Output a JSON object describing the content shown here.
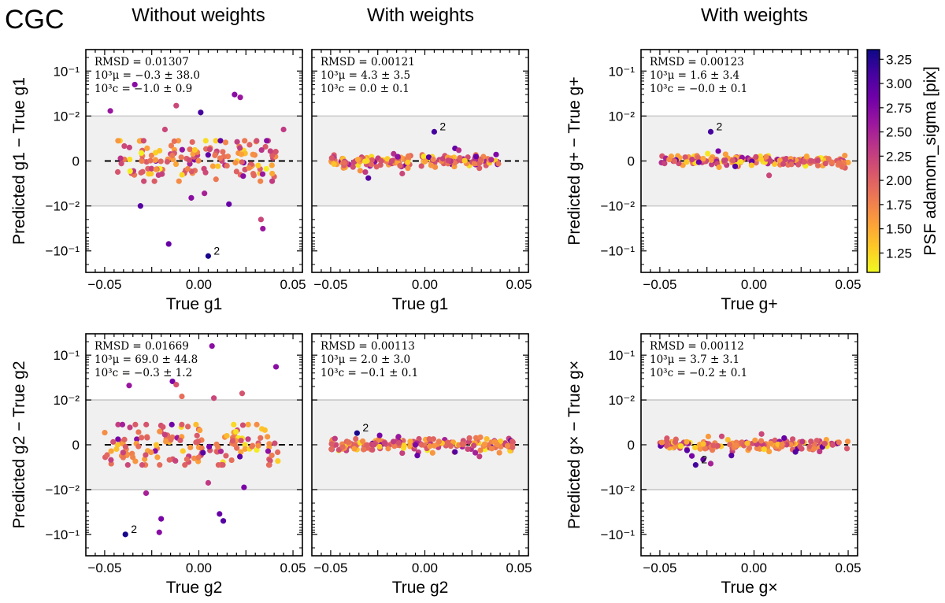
{
  "figure": {
    "title": "CGC",
    "column_titles": [
      "Without weights",
      "With weights",
      "With weights"
    ]
  },
  "colorbar": {
    "label": "PSF adamom_sigma [pix]",
    "ticks": [
      1.25,
      1.5,
      1.75,
      2.0,
      2.25,
      2.5,
      2.75,
      3.0,
      3.25
    ],
    "tick_labels": [
      "1.25",
      "1.50",
      "1.75",
      "2.00",
      "2.25",
      "2.50",
      "2.75",
      "3.00",
      "3.25"
    ],
    "range": [
      1.05,
      3.35
    ],
    "colormap": "plasma_r",
    "colors": [
      "#f0f921",
      "#fdca26",
      "#fb9f3a",
      "#ed7953",
      "#d8576b",
      "#bd3786",
      "#9c179e",
      "#7201a8",
      "#46039f",
      "#0d0887"
    ]
  },
  "chart_data": [
    {
      "id": "p11",
      "type": "scatter",
      "xlabel": "True g1",
      "ylabel": "Predicted g1 − True g1",
      "xlim": [
        -0.06,
        0.055
      ],
      "ylim": [
        -0.3,
        0.3
      ],
      "yscale": "symlog",
      "linthresh": 0.01,
      "xticks": [
        -0.05,
        0.0,
        0.05
      ],
      "xtick_labels": [
        "−0.05",
        "0.00",
        "0.05"
      ],
      "ytick_labels": [
        "10⁻¹",
        "10⁻²",
        "0",
        "−10⁻²",
        "−10⁻¹"
      ],
      "band": [
        -0.01,
        0.01
      ],
      "annotation": [
        "RMSD = 0.01307",
        "10³μ = −0.3 ± 38.0",
        "10³c = −1.0 ± 0.9"
      ],
      "label2": {
        "x": 0.005,
        "y": -0.13,
        "text": "2"
      },
      "outliers": [
        {
          "x": -0.047,
          "y": 0.013,
          "c": 2.6
        },
        {
          "x": -0.034,
          "y": 0.05,
          "c": 2.7
        },
        {
          "x": -0.018,
          "y": 0.007,
          "c": 2.2
        },
        {
          "x": -0.012,
          "y": 0.017,
          "c": 2.2
        },
        {
          "x": 0.001,
          "y": 0.012,
          "c": 3.1
        },
        {
          "x": 0.019,
          "y": 0.03,
          "c": 2.7
        },
        {
          "x": 0.022,
          "y": 0.026,
          "c": 2.6
        },
        {
          "x": 0.045,
          "y": 0.007,
          "c": 2.3
        },
        {
          "x": -0.031,
          "y": -0.01,
          "c": 3.0
        },
        {
          "x": -0.004,
          "y": -0.0082,
          "c": 2.7
        },
        {
          "x": 0.003,
          "y": -0.0072,
          "c": 2.5
        },
        {
          "x": 0.016,
          "y": -0.0096,
          "c": 2.9
        },
        {
          "x": -0.016,
          "y": -0.07,
          "c": 2.9
        },
        {
          "x": 0.005,
          "y": -0.13,
          "c": 3.3
        },
        {
          "x": 0.033,
          "y": -0.02,
          "c": 2.2
        },
        {
          "x": 0.034,
          "y": -0.032,
          "c": 2.6
        }
      ],
      "bulk": {
        "n": 150,
        "xmin": -0.048,
        "xmax": 0.041,
        "spread": 0.003,
        "seed": 11
      }
    },
    {
      "id": "p12",
      "type": "scatter",
      "xlabel": "True g1",
      "ylabel": "",
      "xlim": [
        -0.06,
        0.055
      ],
      "ylim": [
        -0.3,
        0.3
      ],
      "yscale": "symlog",
      "linthresh": 0.01,
      "xticks": [
        -0.05,
        0.0,
        0.05
      ],
      "xtick_labels": [
        "−0.05",
        "0.00",
        "0.05"
      ],
      "band": [
        -0.01,
        0.01
      ],
      "annotation": [
        "RMSD = 0.00121",
        "10³μ = 4.3 ± 3.5",
        "10³c = 0.0 ± 0.1"
      ],
      "label2": {
        "x": 0.005,
        "y": 0.0065,
        "text": "2"
      },
      "outliers": [
        {
          "x": 0.005,
          "y": 0.0065,
          "c": 3.1
        },
        {
          "x": 0.016,
          "y": 0.0028,
          "c": 2.9
        },
        {
          "x": 0.018,
          "y": 0.0024,
          "c": 2.4
        },
        {
          "x": -0.03,
          "y": -0.0038,
          "c": 3.0
        },
        {
          "x": -0.012,
          "y": -0.0028,
          "c": 2.2
        }
      ],
      "bulk": {
        "n": 170,
        "xmin": -0.05,
        "xmax": 0.04,
        "spread": 0.0007,
        "seed": 12
      }
    },
    {
      "id": "p13",
      "type": "scatter",
      "xlabel": "True g+",
      "ylabel": "Predicted g+ − True g+",
      "xlim": [
        -0.06,
        0.055
      ],
      "ylim": [
        -0.3,
        0.3
      ],
      "yscale": "symlog",
      "linthresh": 0.01,
      "xticks": [
        -0.05,
        0.0,
        0.05
      ],
      "xtick_labels": [
        "−0.05",
        "0.00",
        "0.05"
      ],
      "ytick_labels": [
        "10⁻¹",
        "10⁻²",
        "0",
        "−10⁻²",
        "−10⁻¹"
      ],
      "band": [
        -0.01,
        0.01
      ],
      "annotation": [
        "RMSD = 0.00123",
        "10³μ = 1.6 ± 3.4",
        "10³c = −0.0 ± 0.1"
      ],
      "label2": {
        "x": -0.023,
        "y": 0.0065,
        "text": "2"
      },
      "outliers": [
        {
          "x": -0.023,
          "y": 0.0065,
          "c": 3.1
        },
        {
          "x": -0.019,
          "y": 0.0022,
          "c": 2.8
        },
        {
          "x": -0.01,
          "y": -0.0012,
          "c": 3.0
        },
        {
          "x": 0.008,
          "y": -0.0032,
          "c": 2.2
        }
      ],
      "bulk": {
        "n": 170,
        "xmin": -0.05,
        "xmax": 0.05,
        "spread": 0.0006,
        "seed": 13
      }
    },
    {
      "id": "p21",
      "type": "scatter",
      "xlabel": "True g2",
      "ylabel": "Predicted g2 − True g2",
      "xlim": [
        -0.06,
        0.055
      ],
      "ylim": [
        -0.3,
        0.3
      ],
      "yscale": "symlog",
      "linthresh": 0.01,
      "xticks": [
        -0.05,
        0.0,
        0.05
      ],
      "xtick_labels": [
        "−0.05",
        "0.00",
        "0.05"
      ],
      "ytick_labels": [
        "10⁻¹",
        "10⁻²",
        "0",
        "−10⁻²",
        "−10⁻¹"
      ],
      "band": [
        -0.01,
        0.01
      ],
      "annotation": [
        "RMSD = 0.01669",
        "10³μ = 69.0 ± 44.8",
        "10³c = −0.3 ± 1.2"
      ],
      "label2": {
        "x": -0.039,
        "y": -0.1,
        "text": "2"
      },
      "outliers": [
        {
          "x": 0.007,
          "y": 0.16,
          "c": 2.7
        },
        {
          "x": 0.041,
          "y": 0.055,
          "c": 2.7
        },
        {
          "x": -0.037,
          "y": 0.021,
          "c": 2.6
        },
        {
          "x": -0.014,
          "y": 0.026,
          "c": 2.8
        },
        {
          "x": -0.012,
          "y": 0.022,
          "c": 2.1
        },
        {
          "x": -0.009,
          "y": 0.012,
          "c": 1.9
        },
        {
          "x": 0.023,
          "y": 0.014,
          "c": 2.1
        },
        {
          "x": 0.008,
          "y": 0.011,
          "c": 2.2
        },
        {
          "x": -0.028,
          "y": -0.012,
          "c": 2.5
        },
        {
          "x": 0.005,
          "y": -0.0085,
          "c": 2.3
        },
        {
          "x": 0.024,
          "y": -0.0095,
          "c": 2.8
        },
        {
          "x": 0.011,
          "y": -0.035,
          "c": 2.9
        },
        {
          "x": 0.013,
          "y": -0.05,
          "c": 3.0
        },
        {
          "x": -0.02,
          "y": -0.045,
          "c": 2.8
        },
        {
          "x": -0.021,
          "y": -0.09,
          "c": 2.7
        },
        {
          "x": -0.039,
          "y": -0.1,
          "c": 3.3
        }
      ],
      "bulk": {
        "n": 150,
        "xmin": -0.05,
        "xmax": 0.042,
        "spread": 0.003,
        "seed": 21
      }
    },
    {
      "id": "p22",
      "type": "scatter",
      "xlabel": "True g2",
      "ylabel": "",
      "xlim": [
        -0.06,
        0.055
      ],
      "ylim": [
        -0.3,
        0.3
      ],
      "yscale": "symlog",
      "linthresh": 0.01,
      "xticks": [
        -0.05,
        0.0,
        0.05
      ],
      "xtick_labels": [
        "−0.05",
        "0.00",
        "0.05"
      ],
      "band": [
        -0.01,
        0.01
      ],
      "annotation": [
        "RMSD = 0.00113",
        "10³μ = 2.0 ± 3.0",
        "10³c = −0.1 ± 0.1"
      ],
      "label2": {
        "x": -0.036,
        "y": 0.0026,
        "text": "2"
      },
      "outliers": [
        {
          "x": -0.036,
          "y": 0.0026,
          "c": 3.3
        },
        {
          "x": -0.024,
          "y": 0.0021,
          "c": 2.8
        },
        {
          "x": -0.014,
          "y": 0.0018,
          "c": 2.6
        },
        {
          "x": -0.004,
          "y": -0.0024,
          "c": 2.9
        },
        {
          "x": 0.016,
          "y": -0.0016,
          "c": 3.0
        },
        {
          "x": 0.029,
          "y": -0.0026,
          "c": 2.3
        }
      ],
      "bulk": {
        "n": 170,
        "xmin": -0.05,
        "xmax": 0.047,
        "spread": 0.0007,
        "seed": 22
      }
    },
    {
      "id": "p23",
      "type": "scatter",
      "xlabel": "True g×",
      "ylabel": "Predicted g× − True g×",
      "xlim": [
        -0.06,
        0.055
      ],
      "ylim": [
        -0.3,
        0.3
      ],
      "yscale": "symlog",
      "linthresh": 0.01,
      "xticks": [
        -0.05,
        0.0,
        0.05
      ],
      "xtick_labels": [
        "−0.05",
        "0.00",
        "0.05"
      ],
      "ytick_labels": [
        "10⁻¹",
        "10⁻²",
        "0",
        "−10⁻²",
        "−10⁻¹"
      ],
      "band": [
        -0.01,
        0.01
      ],
      "annotation": [
        "RMSD = 0.00112",
        "10³μ = 3.7 ± 3.1",
        "10³c = −0.2 ± 0.1"
      ],
      "label2": {
        "x": -0.031,
        "y": -0.0045,
        "text": "2"
      },
      "outliers": [
        {
          "x": -0.031,
          "y": -0.0045,
          "c": 3.1
        },
        {
          "x": -0.033,
          "y": -0.0025,
          "c": 2.8
        },
        {
          "x": -0.023,
          "y": -0.0042,
          "c": 2.5
        },
        {
          "x": -0.012,
          "y": -0.0024,
          "c": 3.0
        },
        {
          "x": -0.027,
          "y": -0.0033,
          "c": 2.9
        },
        {
          "x": 0.016,
          "y": 0.0015,
          "c": 2.9
        },
        {
          "x": 0.022,
          "y": -0.0016,
          "c": 3.0
        },
        {
          "x": 0.004,
          "y": 0.0024,
          "c": 2.2
        }
      ],
      "bulk": {
        "n": 165,
        "xmin": -0.05,
        "xmax": 0.05,
        "spread": 0.0006,
        "seed": 23
      }
    }
  ]
}
